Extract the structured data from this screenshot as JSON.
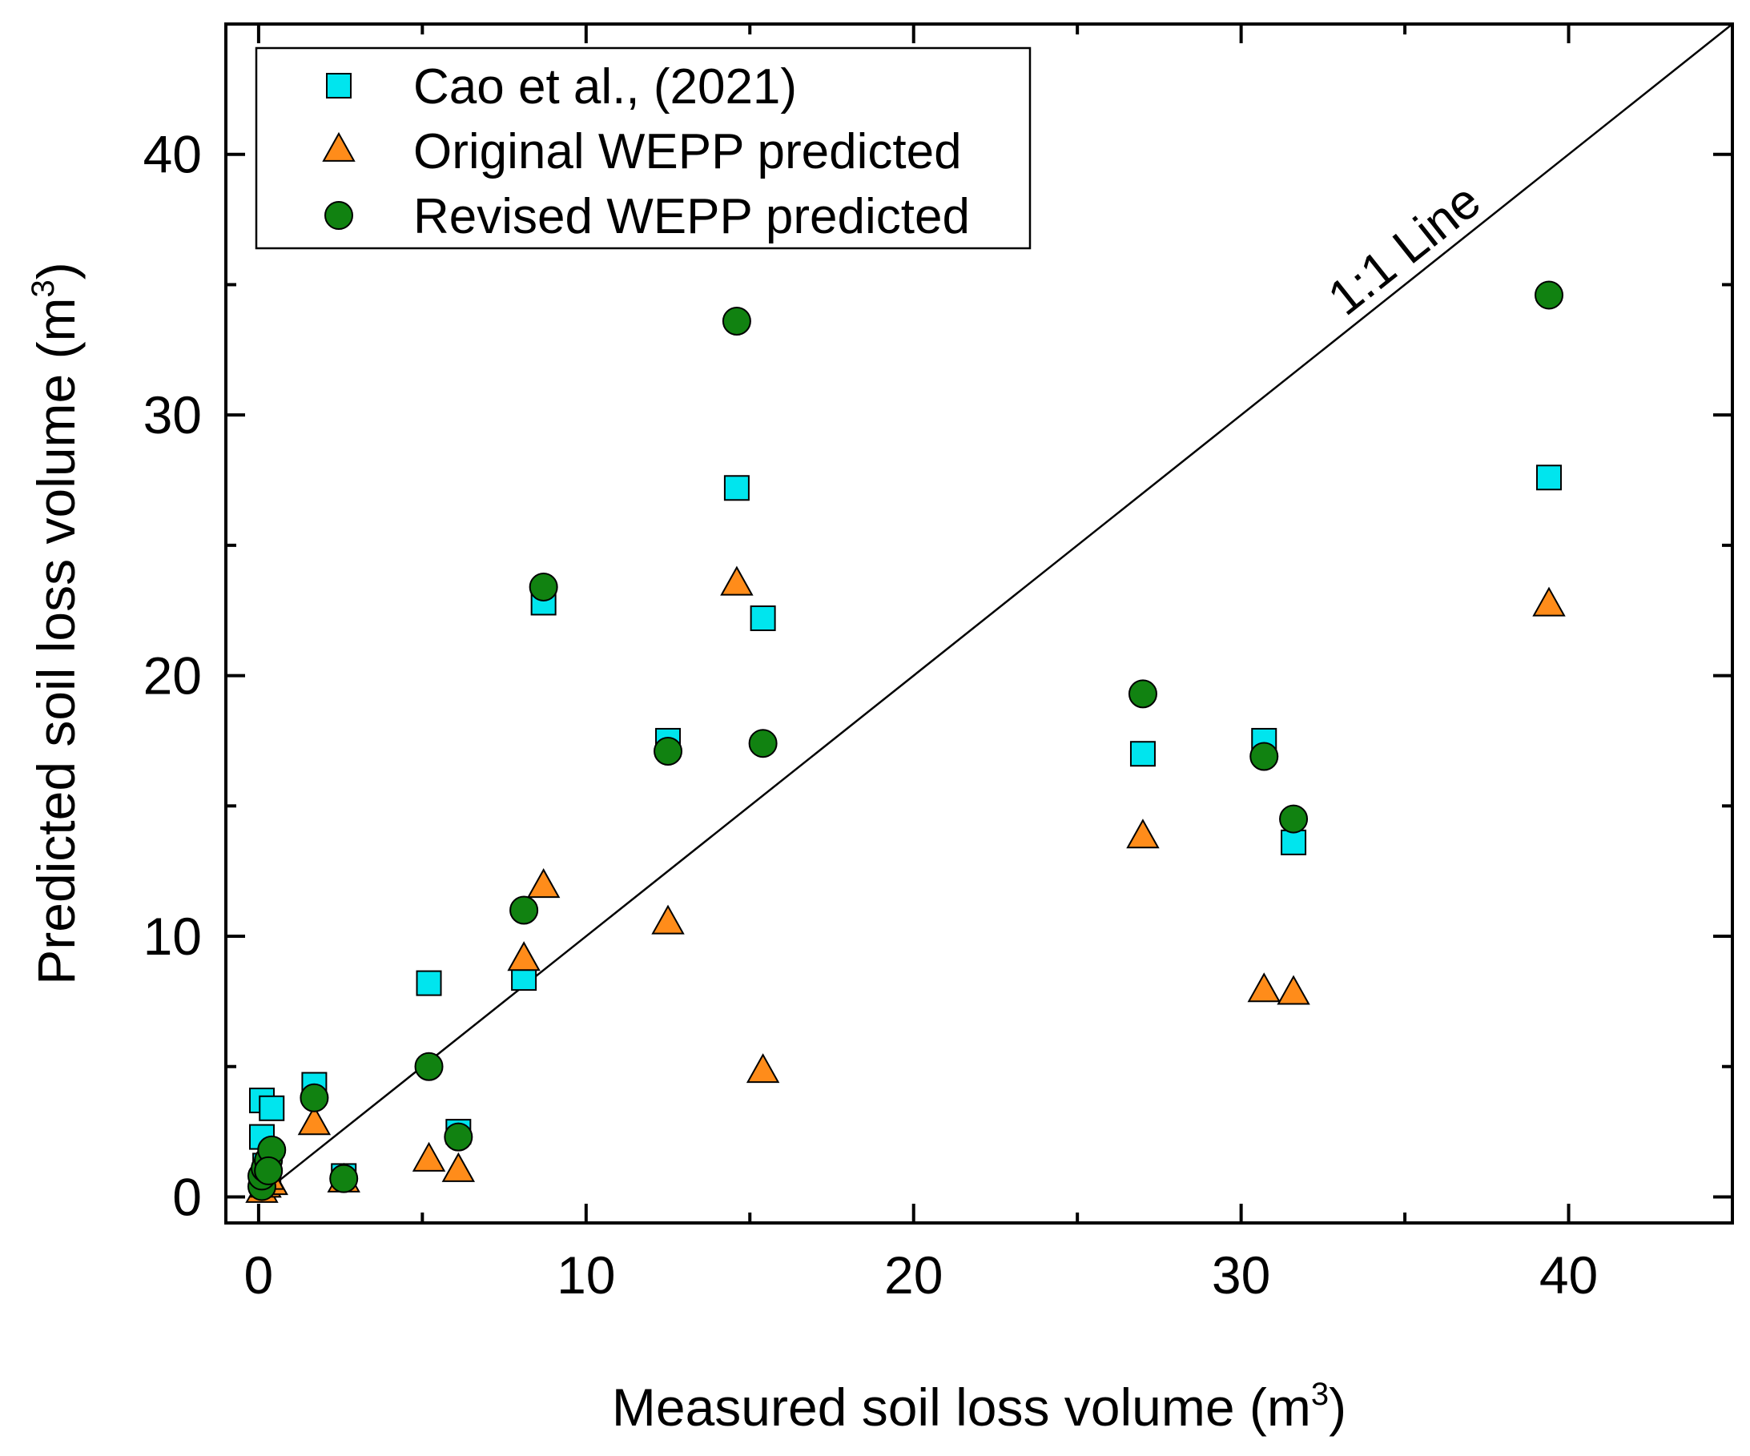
{
  "chart_data": {
    "type": "scatter",
    "xlabel": "Measured soil loss volume (m",
    "xlabel_sup": "3",
    "xlabel_end": ")",
    "ylabel": "Predicted soil loss volume (m",
    "ylabel_sup": "3",
    "ylabel_end": ")",
    "xlim": [
      -1,
      45
    ],
    "ylim": [
      -1,
      45
    ],
    "x_major_ticks": [
      0,
      10,
      20,
      30,
      40
    ],
    "x_minor_ticks": [
      5,
      15,
      25,
      35
    ],
    "y_major_ticks": [
      0,
      10,
      20,
      30,
      40
    ],
    "y_minor_ticks": [
      5,
      15,
      25,
      35
    ],
    "x_tick_labels": [
      "0",
      "10",
      "20",
      "30",
      "40"
    ],
    "y_tick_labels": [
      "0",
      "10",
      "20",
      "30",
      "40"
    ],
    "grid": false,
    "legend_position": "top-left",
    "reference_line": {
      "label": "1:1 Line",
      "slope": 1,
      "intercept": 0,
      "color": "#000000"
    },
    "series": [
      {
        "name": "Cao et al., (2021)",
        "marker": "square",
        "color": "#00E5EE",
        "points": [
          [
            0.1,
            3.7
          ],
          [
            0.1,
            2.3
          ],
          [
            0.4,
            3.4
          ],
          [
            1.7,
            4.3
          ],
          [
            2.6,
            0.8
          ],
          [
            5.2,
            8.2
          ],
          [
            6.1,
            2.5
          ],
          [
            8.1,
            8.4
          ],
          [
            8.7,
            22.8
          ],
          [
            12.5,
            17.5
          ],
          [
            14.6,
            27.2
          ],
          [
            15.4,
            22.2
          ],
          [
            27.0,
            17.0
          ],
          [
            30.7,
            17.5
          ],
          [
            31.6,
            13.6
          ],
          [
            39.4,
            27.6
          ],
          [
            0.2,
            1.2
          ],
          [
            0.3,
            0.8
          ]
        ]
      },
      {
        "name": "Original WEPP predicted",
        "marker": "triangle",
        "color": "#FF8C1A",
        "points": [
          [
            0.1,
            0.2
          ],
          [
            0.2,
            0.4
          ],
          [
            0.4,
            0.5
          ],
          [
            0.3,
            0.7
          ],
          [
            1.7,
            2.8
          ],
          [
            2.6,
            0.6
          ],
          [
            5.2,
            1.4
          ],
          [
            6.1,
            1.0
          ],
          [
            8.1,
            9.1
          ],
          [
            8.7,
            11.9
          ],
          [
            12.5,
            10.5
          ],
          [
            14.6,
            23.5
          ],
          [
            15.4,
            4.8
          ],
          [
            27.0,
            13.8
          ],
          [
            30.7,
            7.9
          ],
          [
            31.6,
            7.8
          ],
          [
            39.4,
            22.7
          ]
        ]
      },
      {
        "name": "Revised WEPP predicted",
        "marker": "circle",
        "color": "#118211",
        "points": [
          [
            0.1,
            0.4
          ],
          [
            0.1,
            0.8
          ],
          [
            0.2,
            1.1
          ],
          [
            0.3,
            1.4
          ],
          [
            0.4,
            1.8
          ],
          [
            0.3,
            1.0
          ],
          [
            1.7,
            3.8
          ],
          [
            2.6,
            0.7
          ],
          [
            5.2,
            5.0
          ],
          [
            6.1,
            2.3
          ],
          [
            8.1,
            11.0
          ],
          [
            8.7,
            23.4
          ],
          [
            12.5,
            17.1
          ],
          [
            14.6,
            33.6
          ],
          [
            15.4,
            17.4
          ],
          [
            27.0,
            19.3
          ],
          [
            30.7,
            16.9
          ],
          [
            31.6,
            14.5
          ],
          [
            39.4,
            34.6
          ]
        ]
      }
    ]
  }
}
